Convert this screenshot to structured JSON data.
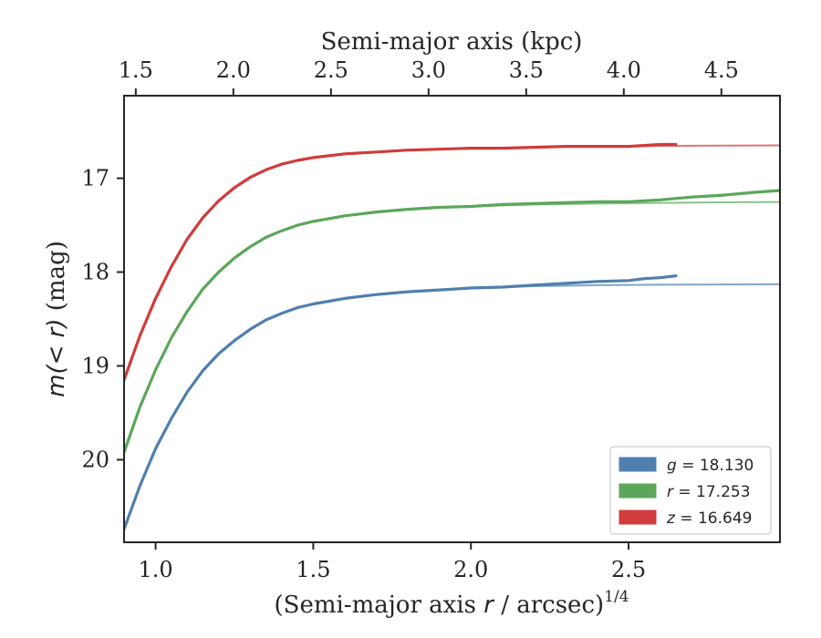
{
  "chart_data": {
    "type": "line",
    "xlabel_bottom": "(Semi-major axis r / arcsec)",
    "xlabel_bottom_parts": {
      "pre": "(Semi-major axis ",
      "var": "r",
      "post": " / arcsec)",
      "sup": "1/4"
    },
    "xlabel_top": "Semi-major axis (kpc)",
    "ylabel": "m(< r) (mag)",
    "ylabel_parts": {
      "math": "m(< r)",
      "unit": " (mag)"
    },
    "xlim": [
      0.9,
      2.98
    ],
    "ylim": [
      20.88,
      16.12
    ],
    "y_inverted": true,
    "x_ticks": [
      1.0,
      1.5,
      2.0,
      2.5
    ],
    "x_tick_labels": [
      "1.0",
      "1.5",
      "2.0",
      "2.5"
    ],
    "top_ticks_kpc": [
      1.5,
      2.0,
      2.5,
      3.0,
      3.5,
      4.0,
      4.5
    ],
    "top_tick_labels": [
      "1.5",
      "2.0",
      "2.5",
      "3.0",
      "3.5",
      "4.0",
      "4.5"
    ],
    "top_axis_mapping": {
      "x_at_0": 0.9,
      "kpc_at_0": 1.44,
      "x_at_1": 2.98,
      "kpc_at_1": 4.8
    },
    "y_ticks": [
      17,
      18,
      19,
      20
    ],
    "y_tick_labels": [
      "17",
      "18",
      "19",
      "20"
    ],
    "grid": false,
    "legend_position": "bottom-right",
    "series": [
      {
        "name": "g = 18.130",
        "legend": {
          "var": "g",
          "value": "18.130"
        },
        "color": "#4f7fae",
        "data": [
          [
            0.9,
            20.74
          ],
          [
            0.95,
            20.28
          ],
          [
            1.0,
            19.88
          ],
          [
            1.05,
            19.56
          ],
          [
            1.1,
            19.28
          ],
          [
            1.15,
            19.05
          ],
          [
            1.2,
            18.87
          ],
          [
            1.25,
            18.73
          ],
          [
            1.3,
            18.61
          ],
          [
            1.35,
            18.51
          ],
          [
            1.4,
            18.44
          ],
          [
            1.45,
            18.38
          ],
          [
            1.5,
            18.34
          ],
          [
            1.6,
            18.28
          ],
          [
            1.7,
            18.24
          ],
          [
            1.8,
            18.21
          ],
          [
            1.9,
            18.19
          ],
          [
            2.0,
            18.17
          ],
          [
            2.1,
            18.16
          ],
          [
            2.2,
            18.14
          ],
          [
            2.3,
            18.12
          ],
          [
            2.4,
            18.1
          ],
          [
            2.5,
            18.09
          ],
          [
            2.55,
            18.07
          ],
          [
            2.6,
            18.06
          ],
          [
            2.65,
            18.04
          ]
        ],
        "model": [
          [
            0.9,
            20.74
          ],
          [
            0.95,
            20.28
          ],
          [
            1.0,
            19.88
          ],
          [
            1.05,
            19.56
          ],
          [
            1.1,
            19.28
          ],
          [
            1.15,
            19.05
          ],
          [
            1.2,
            18.87
          ],
          [
            1.25,
            18.73
          ],
          [
            1.3,
            18.61
          ],
          [
            1.35,
            18.51
          ],
          [
            1.4,
            18.44
          ],
          [
            1.45,
            18.38
          ],
          [
            1.5,
            18.34
          ],
          [
            1.6,
            18.28
          ],
          [
            1.7,
            18.24
          ],
          [
            1.8,
            18.21
          ],
          [
            1.9,
            18.19
          ],
          [
            2.0,
            18.17
          ],
          [
            2.2,
            18.15
          ],
          [
            2.4,
            18.14
          ],
          [
            2.6,
            18.135
          ],
          [
            2.8,
            18.132
          ],
          [
            2.98,
            18.13
          ]
        ]
      },
      {
        "name": "r = 17.253",
        "legend": {
          "var": "r",
          "value": "17.253"
        },
        "color": "#5ba65b",
        "data": [
          [
            0.9,
            19.92
          ],
          [
            0.95,
            19.44
          ],
          [
            1.0,
            19.04
          ],
          [
            1.05,
            18.7
          ],
          [
            1.1,
            18.42
          ],
          [
            1.15,
            18.18
          ],
          [
            1.2,
            18.0
          ],
          [
            1.25,
            17.85
          ],
          [
            1.3,
            17.73
          ],
          [
            1.35,
            17.63
          ],
          [
            1.4,
            17.56
          ],
          [
            1.45,
            17.5
          ],
          [
            1.5,
            17.46
          ],
          [
            1.6,
            17.4
          ],
          [
            1.7,
            17.36
          ],
          [
            1.8,
            17.33
          ],
          [
            1.9,
            17.31
          ],
          [
            2.0,
            17.3
          ],
          [
            2.1,
            17.28
          ],
          [
            2.2,
            17.27
          ],
          [
            2.3,
            17.26
          ],
          [
            2.4,
            17.25
          ],
          [
            2.5,
            17.25
          ],
          [
            2.6,
            17.23
          ],
          [
            2.7,
            17.2
          ],
          [
            2.8,
            17.18
          ],
          [
            2.9,
            17.15
          ],
          [
            2.98,
            17.13
          ]
        ],
        "model": [
          [
            0.9,
            19.92
          ],
          [
            0.95,
            19.44
          ],
          [
            1.0,
            19.04
          ],
          [
            1.05,
            18.7
          ],
          [
            1.1,
            18.42
          ],
          [
            1.15,
            18.18
          ],
          [
            1.2,
            18.0
          ],
          [
            1.25,
            17.85
          ],
          [
            1.3,
            17.73
          ],
          [
            1.35,
            17.63
          ],
          [
            1.4,
            17.56
          ],
          [
            1.45,
            17.5
          ],
          [
            1.5,
            17.46
          ],
          [
            1.6,
            17.4
          ],
          [
            1.7,
            17.36
          ],
          [
            1.8,
            17.33
          ],
          [
            1.9,
            17.31
          ],
          [
            2.0,
            17.3
          ],
          [
            2.2,
            17.28
          ],
          [
            2.4,
            17.27
          ],
          [
            2.6,
            17.262
          ],
          [
            2.8,
            17.257
          ],
          [
            2.98,
            17.253
          ]
        ]
      },
      {
        "name": "z = 16.649",
        "legend": {
          "var": "z",
          "value": "16.649"
        },
        "color": "#d03b3b",
        "data": [
          [
            0.9,
            19.15
          ],
          [
            0.95,
            18.68
          ],
          [
            1.0,
            18.28
          ],
          [
            1.05,
            17.94
          ],
          [
            1.1,
            17.65
          ],
          [
            1.15,
            17.42
          ],
          [
            1.2,
            17.24
          ],
          [
            1.25,
            17.1
          ],
          [
            1.3,
            16.99
          ],
          [
            1.35,
            16.91
          ],
          [
            1.4,
            16.85
          ],
          [
            1.45,
            16.81
          ],
          [
            1.5,
            16.78
          ],
          [
            1.6,
            16.74
          ],
          [
            1.7,
            16.72
          ],
          [
            1.8,
            16.7
          ],
          [
            1.9,
            16.69
          ],
          [
            2.0,
            16.68
          ],
          [
            2.1,
            16.68
          ],
          [
            2.2,
            16.67
          ],
          [
            2.3,
            16.66
          ],
          [
            2.4,
            16.66
          ],
          [
            2.5,
            16.66
          ],
          [
            2.55,
            16.65
          ],
          [
            2.6,
            16.64
          ],
          [
            2.65,
            16.64
          ]
        ],
        "model": [
          [
            0.9,
            19.15
          ],
          [
            0.95,
            18.68
          ],
          [
            1.0,
            18.28
          ],
          [
            1.05,
            17.94
          ],
          [
            1.1,
            17.65
          ],
          [
            1.15,
            17.42
          ],
          [
            1.2,
            17.24
          ],
          [
            1.25,
            17.1
          ],
          [
            1.3,
            16.99
          ],
          [
            1.35,
            16.91
          ],
          [
            1.4,
            16.85
          ],
          [
            1.45,
            16.81
          ],
          [
            1.5,
            16.78
          ],
          [
            1.6,
            16.74
          ],
          [
            1.7,
            16.72
          ],
          [
            1.8,
            16.7
          ],
          [
            1.9,
            16.69
          ],
          [
            2.0,
            16.68
          ],
          [
            2.2,
            16.67
          ],
          [
            2.4,
            16.66
          ],
          [
            2.6,
            16.655
          ],
          [
            2.8,
            16.651
          ],
          [
            2.98,
            16.649
          ]
        ]
      }
    ]
  }
}
